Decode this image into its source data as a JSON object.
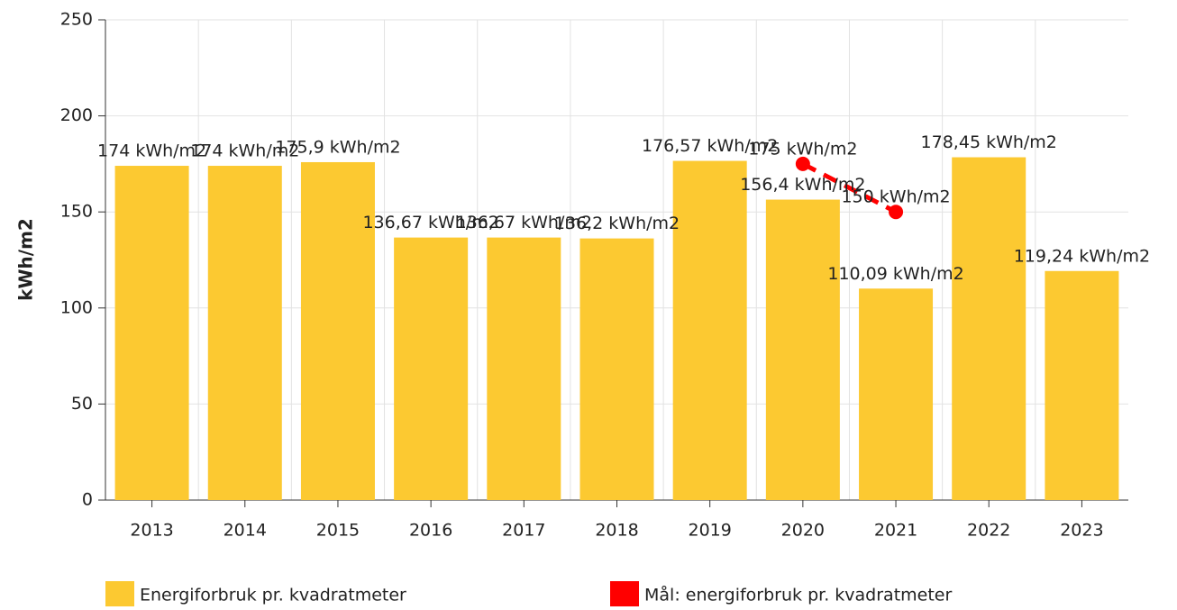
{
  "chart_data": {
    "type": "bar",
    "y_label": "kWh/m2",
    "categories": [
      "2013",
      "2014",
      "2015",
      "2016",
      "2017",
      "2018",
      "2019",
      "2020",
      "2021",
      "2022",
      "2023"
    ],
    "series": [
      {
        "name": "Energiforbruk pr. kvadratmeter",
        "type": "bar",
        "color": "#fcc931",
        "values": [
          174,
          174,
          175.9,
          136.67,
          136.67,
          136.2,
          176.57,
          156.4,
          110.09,
          178.45,
          119.24
        ],
        "value_labels": [
          "174 kWh/m2",
          "174 kWh/m2",
          "175,9 kWh/m2",
          "136,67 kWh/m2",
          "136,67 kWh/m2",
          "136,2 kWh/m2",
          "176,57 kWh/m2",
          "156,4 kWh/m2",
          "110,09 kWh/m2",
          "178,45 kWh/m2",
          "119,24 kWh/m2"
        ]
      },
      {
        "name": "Mål: energiforbruk pr. kvadratmeter",
        "type": "line",
        "color": "#ff0000",
        "dashed": true,
        "values": [
          null,
          null,
          null,
          null,
          null,
          null,
          null,
          175,
          150,
          null,
          null
        ],
        "value_labels": [
          null,
          null,
          null,
          null,
          null,
          null,
          null,
          "175 kWh/m2",
          "150 kWh/m2",
          null,
          null
        ]
      }
    ],
    "ylim": [
      0,
      250
    ],
    "yticks": [
      0,
      50,
      100,
      150,
      200,
      250
    ],
    "grid": true,
    "legend": "bottom"
  }
}
